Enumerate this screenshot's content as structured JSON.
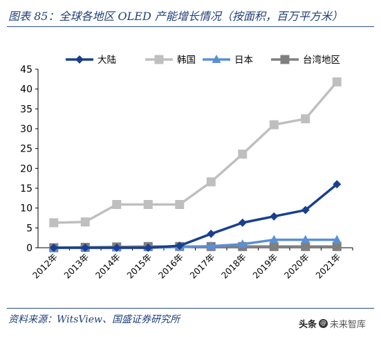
{
  "header": {
    "title": "图表 85：全球各地区 OLED 产能增长情况（按面积，百万平方米）"
  },
  "footer": {
    "source": "资料来源：WitsView、国盛证券研究所",
    "watermark_prefix": "头条",
    "watermark_name": "未来智库"
  },
  "chart_data": {
    "type": "line",
    "categories": [
      "2012年",
      "2013年",
      "2014年",
      "2015年",
      "2016年",
      "2017年",
      "2018年",
      "2019年",
      "2020年",
      "2021年"
    ],
    "ylim": [
      0,
      45
    ],
    "yticks": [
      0,
      5,
      10,
      15,
      20,
      25,
      30,
      35,
      40,
      45
    ],
    "grid": false,
    "legend_position": "top",
    "series": [
      {
        "name": "大陆",
        "color": "#1a3f8f",
        "marker": "diamond",
        "values": [
          0,
          0,
          0,
          0,
          0.5,
          3.5,
          6.3,
          7.9,
          9.5,
          16
        ]
      },
      {
        "name": "韩国",
        "color": "#bfbfbf",
        "marker": "square",
        "values": [
          6.3,
          6.5,
          10.9,
          10.9,
          10.9,
          16.6,
          23.6,
          31,
          32.5,
          41.8
        ]
      },
      {
        "name": "日本",
        "color": "#5b8fd6",
        "marker": "triangle",
        "values": [
          0,
          0,
          0,
          0,
          0.2,
          0.4,
          0.9,
          2,
          2,
          2
        ]
      },
      {
        "name": "台湾地区",
        "color": "#7f7f7f",
        "marker": "square",
        "values": [
          0,
          0.1,
          0.2,
          0.3,
          0.3,
          0.3,
          0.3,
          0.3,
          0.3,
          0.3
        ]
      }
    ]
  }
}
